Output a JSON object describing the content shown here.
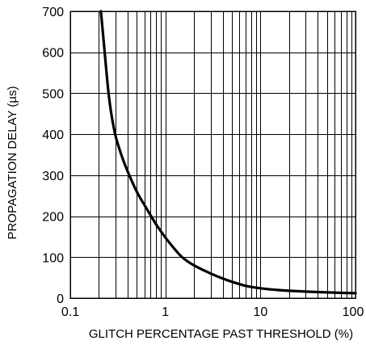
{
  "chart_data": {
    "type": "line",
    "title": "",
    "xlabel": "GLITCH PERCENTAGE PAST THRESHOLD (%)",
    "ylabel": "PROPAGATION DELAY (µs)",
    "x_scale": "log",
    "xlim": [
      0.1,
      100
    ],
    "ylim": [
      0,
      700
    ],
    "x_ticks": [
      0.1,
      1,
      10,
      100
    ],
    "x_tick_labels": [
      "0.1",
      "1",
      "10",
      "100"
    ],
    "y_ticks": [
      0,
      100,
      200,
      300,
      400,
      500,
      600,
      700
    ],
    "y_tick_labels": [
      "0",
      "100",
      "200",
      "300",
      "400",
      "500",
      "600",
      "700"
    ],
    "grid": true,
    "colors": {
      "curve": "#000000",
      "grid": "#000000"
    },
    "series": [
      {
        "x": [
          0.21,
          0.23,
          0.25,
          0.27,
          0.3,
          0.35,
          0.4,
          0.5,
          0.6,
          0.7,
          0.8,
          1.0,
          1.2,
          1.5,
          2,
          3,
          4,
          5,
          7,
          10,
          15,
          20,
          30,
          50,
          100
        ],
        "y": [
          700,
          600,
          510,
          450,
          395,
          345,
          310,
          260,
          228,
          202,
          180,
          148,
          125,
          100,
          80,
          60,
          48,
          40,
          30,
          24,
          20,
          18,
          16,
          14,
          12
        ]
      }
    ]
  }
}
